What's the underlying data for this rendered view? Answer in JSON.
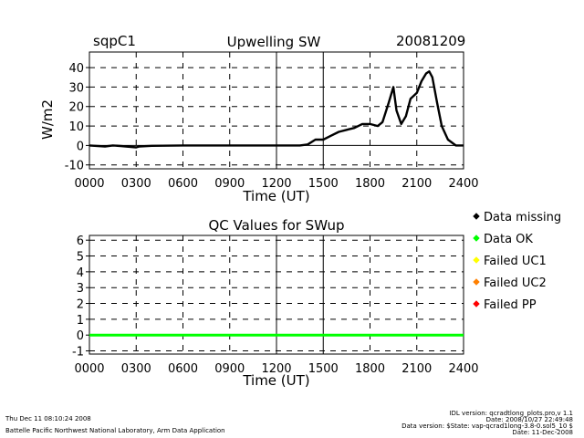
{
  "header": {
    "site": "sqpC1",
    "date": "20081209"
  },
  "chart_data": [
    {
      "type": "line",
      "title": "Upwelling SW",
      "xlabel": "Time (UT)",
      "ylabel": "W/m2",
      "xlim": [
        0,
        2400
      ],
      "ylim": [
        -12,
        48
      ],
      "x_tick_labels": [
        "0000",
        "0300",
        "0600",
        "0900",
        "1200",
        "1500",
        "1800",
        "2100",
        "2400"
      ],
      "y_tick_labels": [
        "-10",
        "0",
        "10",
        "20",
        "30",
        "40"
      ],
      "y_ticks": [
        -10,
        0,
        10,
        20,
        30,
        40
      ],
      "grid": true,
      "series": [
        {
          "name": "SWup",
          "x": [
            0,
            100,
            150,
            200,
            300,
            320,
            400,
            600,
            900,
            1200,
            1350,
            1400,
            1450,
            1500,
            1550,
            1600,
            1650,
            1700,
            1750,
            1800,
            1850,
            1880,
            1920,
            1950,
            1970,
            2000,
            2030,
            2060,
            2100,
            2130,
            2160,
            2180,
            2200,
            2230,
            2260,
            2300,
            2350,
            2400
          ],
          "values": [
            0,
            -0.5,
            0,
            -0.3,
            -1,
            -0.5,
            -0.2,
            0,
            0,
            0,
            0,
            0.5,
            3,
            3,
            5,
            7,
            8,
            9,
            11,
            11,
            10,
            12,
            22,
            30,
            18,
            11,
            15,
            24,
            27,
            33,
            37,
            38,
            35,
            22,
            10,
            3,
            0,
            0
          ]
        }
      ]
    },
    {
      "type": "line",
      "title": "QC Values for SWup",
      "xlabel": "Time (UT)",
      "ylabel": "",
      "xlim": [
        0,
        2400
      ],
      "ylim": [
        -1.2,
        6.3
      ],
      "x_tick_labels": [
        "0000",
        "0300",
        "0600",
        "0900",
        "1200",
        "1500",
        "1800",
        "2100",
        "2400"
      ],
      "y_tick_labels": [
        "-1",
        "0",
        "1",
        "2",
        "3",
        "4",
        "5",
        "6"
      ],
      "y_ticks": [
        -1,
        0,
        1,
        2,
        3,
        4,
        5,
        6
      ],
      "grid": true,
      "series": [
        {
          "name": "QC",
          "x": [
            0,
            2400
          ],
          "values": [
            0,
            0
          ]
        }
      ],
      "legend": [
        {
          "label": "Data missing",
          "color": "#000000"
        },
        {
          "label": "Data OK",
          "color": "#00ff00"
        },
        {
          "label": "Failed UC1",
          "color": "#ffff00"
        },
        {
          "label": "Failed UC2",
          "color": "#ff8000"
        },
        {
          "label": "Failed PP",
          "color": "#ff0000"
        }
      ]
    }
  ],
  "footer": {
    "timestamp": "Thu Dec 11 08:10:24 2008",
    "credit": "Battelle Pacific Northwest National Laboratory, Arm Data Application",
    "idl_version": "IDL version: qcradtlong_plots.pro,v 1.1",
    "idl_date": "Date: 2008/10/27 22:49:48",
    "data_version": "Data version: $State: vap-qcrad1long-3.8-0.sol5_10 $",
    "data_date": "Date: 11-Dec-2008"
  },
  "colors": {
    "line": "#000000",
    "qc_ok": "#00ff00",
    "grid": "#000000"
  }
}
